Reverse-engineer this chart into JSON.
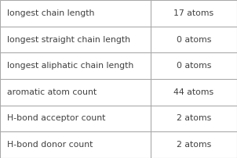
{
  "rows": [
    {
      "label": "longest chain length",
      "value": "17 atoms"
    },
    {
      "label": "longest straight chain length",
      "value": "0 atoms"
    },
    {
      "label": "longest aliphatic chain length",
      "value": "0 atoms"
    },
    {
      "label": "aromatic atom count",
      "value": "44 atoms"
    },
    {
      "label": "H-bond acceptor count",
      "value": "2 atoms"
    },
    {
      "label": "H-bond donor count",
      "value": "2 atoms"
    }
  ],
  "background_color": "#ffffff",
  "border_color": "#aaaaaa",
  "text_color": "#404040",
  "label_fontsize": 7.8,
  "value_fontsize": 7.8,
  "col_split": 0.635,
  "fig_width": 3.02,
  "fig_height": 2.02,
  "dpi": 100
}
